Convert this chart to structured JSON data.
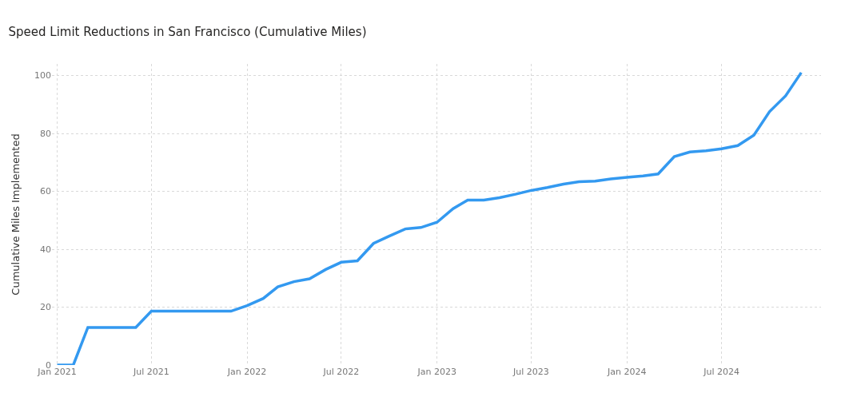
{
  "chart_data": {
    "type": "line",
    "title": "Speed Limit Reductions in San Francisco (Cumulative Miles)",
    "ylabel": "Cumulative Miles Implemented",
    "x": [
      "2021-01",
      "2021-02",
      "2021-03",
      "2021-04",
      "2021-05",
      "2021-06",
      "2021-07",
      "2021-08",
      "2021-09",
      "2021-10",
      "2021-11",
      "2021-12",
      "2022-01",
      "2022-02",
      "2022-03",
      "2022-04",
      "2022-05",
      "2022-06",
      "2022-07",
      "2022-08",
      "2022-09",
      "2022-10",
      "2022-11",
      "2022-12",
      "2023-01",
      "2023-02",
      "2023-03",
      "2023-04",
      "2023-05",
      "2023-06",
      "2023-07",
      "2023-08",
      "2023-09",
      "2023-10",
      "2023-11",
      "2023-12",
      "2024-01",
      "2024-02",
      "2024-03",
      "2024-04",
      "2024-05",
      "2024-06",
      "2024-07",
      "2024-08",
      "2024-09",
      "2024-10",
      "2024-11",
      "2024-12"
    ],
    "series": [
      {
        "color": "#3399f0",
        "values": [
          0,
          0,
          13,
          13,
          13,
          13,
          18.6,
          18.6,
          18.6,
          18.6,
          18.6,
          18.6,
          20.5,
          23,
          27,
          28.8,
          29.8,
          33,
          35.5,
          36,
          42,
          44.5,
          47,
          47.5,
          49.3,
          54,
          57,
          57,
          57.8,
          59,
          60.3,
          61.3,
          62.5,
          63.3,
          63.5,
          64.3,
          64.8,
          65.3,
          66,
          72,
          73.6,
          74,
          74.7,
          75.8,
          79.4,
          87.5,
          93,
          101
        ]
      }
    ],
    "xlim": [
      "2020-12-22",
      "2025-01-08"
    ],
    "ylim": [
      0,
      104
    ],
    "xticks": [
      {
        "value": "2021-01-01",
        "label": "Jan 2021"
      },
      {
        "value": "2021-07-01",
        "label": "Jul 2021"
      },
      {
        "value": "2022-01-01",
        "label": "Jan 2022"
      },
      {
        "value": "2022-07-01",
        "label": "Jul 2022"
      },
      {
        "value": "2023-01-01",
        "label": "Jan 2023"
      },
      {
        "value": "2023-07-01",
        "label": "Jul 2023"
      },
      {
        "value": "2024-01-01",
        "label": "Jan 2024"
      },
      {
        "value": "2024-07-01",
        "label": "Jul 2024"
      }
    ],
    "yticks": [
      0,
      20,
      40,
      60,
      80,
      100
    ],
    "grid": true,
    "marker": "none",
    "line_style": "solid"
  }
}
